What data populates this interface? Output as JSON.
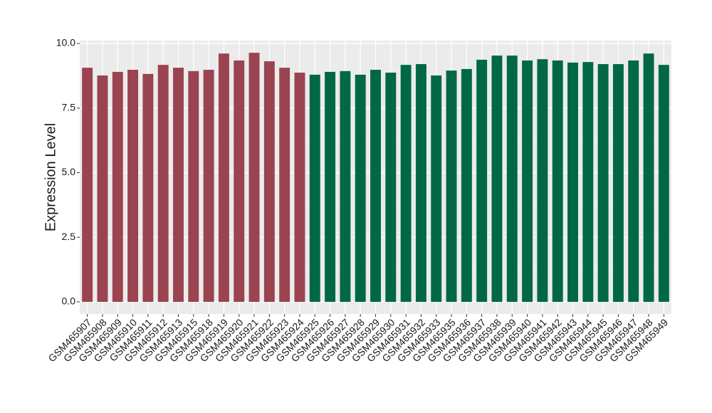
{
  "chart_data": {
    "type": "bar",
    "y_label": "Expression Level",
    "categories": [
      "GSM465907",
      "GSM465908",
      "GSM465909",
      "GSM465910",
      "GSM465911",
      "GSM465912",
      "GSM465913",
      "GSM465915",
      "GSM465918",
      "GSM465919",
      "GSM465920",
      "GSM465921",
      "GSM465922",
      "GSM465923",
      "GSM465924",
      "GSM465925",
      "GSM465926",
      "GSM465927",
      "GSM465928",
      "GSM465929",
      "GSM465930",
      "GSM465931",
      "GSM465932",
      "GSM465933",
      "GSM465935",
      "GSM465936",
      "GSM465937",
      "GSM465938",
      "GSM465939",
      "GSM465940",
      "GSM465941",
      "GSM465942",
      "GSM465943",
      "GSM465944",
      "GSM465945",
      "GSM465946",
      "GSM465947",
      "GSM465948",
      "GSM465949"
    ],
    "values": [
      9.06,
      8.76,
      8.9,
      8.98,
      8.82,
      9.17,
      9.06,
      8.93,
      8.98,
      9.61,
      9.34,
      9.64,
      9.31,
      9.06,
      8.87,
      8.79,
      8.9,
      8.93,
      8.79,
      8.98,
      8.87,
      9.17,
      9.2,
      8.76,
      8.95,
      9.01,
      9.37,
      9.53,
      9.53,
      9.34,
      9.39,
      9.34,
      9.26,
      9.28,
      9.2,
      9.2,
      9.34,
      9.61,
      9.17
    ],
    "colors": [
      "#9b4350",
      "#9b4350",
      "#9b4350",
      "#9b4350",
      "#9b4350",
      "#9b4350",
      "#9b4350",
      "#9b4350",
      "#9b4350",
      "#9b4350",
      "#9b4350",
      "#9b4350",
      "#9b4350",
      "#9b4350",
      "#9b4350",
      "#006845",
      "#006845",
      "#006845",
      "#006845",
      "#006845",
      "#006845",
      "#006845",
      "#006845",
      "#006845",
      "#006845",
      "#006845",
      "#006845",
      "#006845",
      "#006845",
      "#006845",
      "#006845",
      "#006845",
      "#006845",
      "#006845",
      "#006845",
      "#006845",
      "#006845",
      "#006845",
      "#006845"
    ],
    "ylim": [
      -0.47,
      10.11
    ],
    "yticks": [
      {
        "value": 0,
        "label": "0.0"
      },
      2.5,
      {
        "value": 5,
        "label": "5.0"
      },
      7.5,
      {
        "value": 10,
        "label": "10.0"
      }
    ],
    "grid": true
  }
}
